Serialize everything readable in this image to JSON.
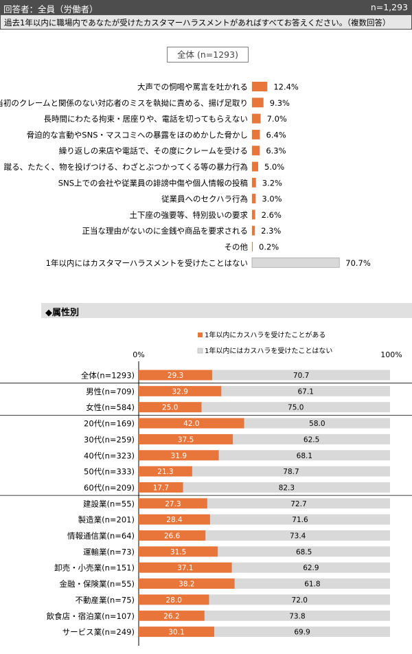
{
  "header": {
    "respondents": "回答者：全員（労働者）",
    "n": "n=1,293"
  },
  "question": "過去1年以内に職場内であなたが受けたカスタマーハラスメントがあればすべてお答えください。（複数回答）",
  "total_label": "全体 (n=1293)",
  "section_title": "◆属性別",
  "colors": {
    "accent": "#e8763a",
    "gray": "#d9d9d9",
    "header_bg": "#4d4d4d"
  },
  "chart_data": [
    {
      "type": "bar",
      "orientation": "horizontal",
      "title": "全体 (n=1293)",
      "categories": [
        "大声での恫喝や罵言を吐かれる",
        "当初のクレームと関係のない対応者のミスを執拗に責める、揚げ足取り",
        "長時間にわたる拘束・居座りや、電話を切ってもらえない",
        "脅迫的な言動やSNS・マスコミへの暴露をほのめかした脅かし",
        "繰り返しの来店や電話で、その度にクレームを受ける",
        "殴る、蹴る、たたく、物を投げつける、わざとぶつかってくる等の暴力行為",
        "SNS上での会社や従業員の誹謗中傷や個人情報の投稿",
        "従業員へのセクハラ行為",
        "土下座の強要等、特別扱いの要求",
        "正当な理由がないのに金銭や商品を要求される",
        "その他",
        "1年以内にはカスタマーハラスメントを受けたことはない"
      ],
      "values": [
        12.4,
        9.3,
        7.0,
        6.4,
        6.3,
        5.0,
        3.2,
        3.0,
        2.6,
        2.3,
        0.2,
        70.7
      ],
      "value_labels": [
        "12.4%",
        "9.3%",
        "7.0%",
        "6.4%",
        "6.3%",
        "5.0%",
        "3.2%",
        "3.0%",
        "2.6%",
        "2.3%",
        "0.2%",
        "70.7%"
      ],
      "highlight_last_gray": true
    },
    {
      "type": "bar",
      "orientation": "horizontal",
      "stacked": true,
      "title": "◆属性別",
      "xlim": [
        0,
        100
      ],
      "tick_labels": [
        "0%",
        "100%"
      ],
      "legend_position": "top",
      "series": [
        {
          "name": "1年以内にカスハラを受けたことがある",
          "color": "#e8763a",
          "values": [
            29.3,
            32.9,
            25.0,
            42.0,
            37.5,
            31.9,
            21.3,
            17.7,
            27.3,
            28.4,
            26.6,
            31.5,
            37.1,
            38.2,
            28.0,
            26.2,
            30.1
          ],
          "labels": [
            "29.3",
            "32.9",
            "25.0",
            "42.0",
            "37.5",
            "31.9",
            "21.3",
            "17.7",
            "27.3",
            "28.4",
            "26.6",
            "31.5",
            "37.1",
            "38.2",
            "28.0",
            "26.2",
            "30.1"
          ]
        },
        {
          "name": "1年以内にはカスハラを受けたことはない",
          "color": "#d9d9d9",
          "values": [
            70.7,
            67.1,
            75.0,
            58.0,
            62.5,
            68.1,
            78.7,
            82.3,
            72.7,
            71.6,
            73.4,
            68.5,
            62.9,
            61.8,
            72.0,
            73.8,
            69.9
          ],
          "labels": [
            "70.7",
            "67.1",
            "75.0",
            "58.0",
            "62.5",
            "68.1",
            "78.7",
            "82.3",
            "72.7",
            "71.6",
            "73.4",
            "68.5",
            "62.9",
            "61.8",
            "72.0",
            "73.8",
            "69.9"
          ]
        }
      ],
      "categories": [
        "全体(n=1293)",
        "男性(n=709)",
        "女性(n=584)",
        "20代(n=169)",
        "30代(n=259)",
        "40代(n=323)",
        "50代(n=333)",
        "60代(n=209)",
        "建設業(n=55)",
        "製造業(n=201)",
        "情報通信業(n=64)",
        "運輸業(n=73)",
        "卸売・小売業(n=151)",
        "金融・保険業(n=55)",
        "不動産業(n=75)",
        "飲食店・宿泊業(n=107)",
        "サービス業(n=249)"
      ],
      "group_breaks_after": [
        0,
        2,
        7
      ]
    }
  ]
}
